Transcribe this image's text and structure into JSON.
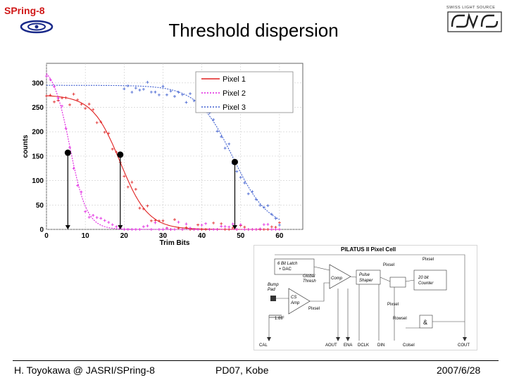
{
  "slide": {
    "title": "Threshold dispersion",
    "logo_left_text": "SPring-8",
    "logo_right_text": "SWISS LIGHT SOURCE",
    "footer": {
      "author": "H. Toyokawa @ JASRI/SPring-8",
      "event": "PD07, Kobe",
      "date": "2007/6/28"
    }
  },
  "chart_data": {
    "type": "line",
    "title": "",
    "xlabel": "Trim Bits",
    "ylabel": "counts",
    "xlim": [
      0,
      66
    ],
    "ylim": [
      0,
      340
    ],
    "x_ticks": [
      0,
      10,
      20,
      30,
      40,
      50,
      60
    ],
    "y_ticks": [
      0,
      50,
      100,
      150,
      200,
      250,
      300
    ],
    "grid": true,
    "legend_position": "top-right",
    "series": [
      {
        "name": "Pixel 1",
        "color": "#e02020",
        "x0": 19,
        "width": 3.6,
        "top": 275
      },
      {
        "name": "Pixel 2",
        "color": "#e020e0",
        "x0": 6,
        "width": 2.2,
        "top": 340
      },
      {
        "name": "Pixel 3",
        "color": "#4060d0",
        "x0": 48,
        "width": 4.6,
        "top": 295
      }
    ],
    "markers": [
      {
        "x": 5.5,
        "y": 157
      },
      {
        "x": 19,
        "y": 153
      },
      {
        "x": 48.5,
        "y": 138
      }
    ]
  },
  "diagram": {
    "title": "PILATUS II Pixel Cell",
    "labels": {
      "latch": "6 Bit Latch",
      "dac": "+ DAC",
      "global_thresh_1": "Global",
      "global_thresh_2": "Thresh",
      "comp": "Comp",
      "pulse_1": "Pulse",
      "pulse_2": "Shaper",
      "bump_1": "Bump",
      "bump_2": "Pad",
      "cs_1": "CS",
      "cs_2": "Amp",
      "pixsel_1": "Pixsel",
      "pixsel_2": "Pixsel",
      "pixsel_3": "Pixsel",
      "pixsel_4": "Pixsel",
      "counter_1": "20 bit",
      "counter_2": "Counter",
      "rowsel": "Rowsel",
      "and": "&",
      "cap": "1.6fF",
      "aout": "AOUT",
      "ena": "ENA",
      "dclk": "DCLK",
      "din": "DIN",
      "colsel": "Colsel",
      "cout": "COUT",
      "cal": "CAL"
    }
  }
}
